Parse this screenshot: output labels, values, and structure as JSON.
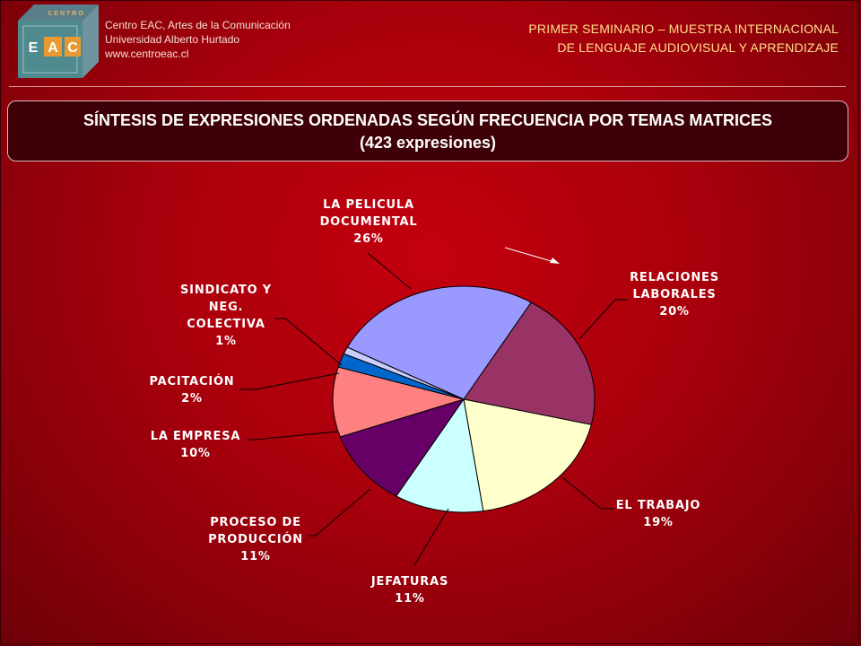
{
  "header": {
    "org_lines": [
      "Centro EAC, Artes de la Comunicación",
      "Universidad Alberto Hurtado",
      "www.centroeac.cl"
    ],
    "seminar_lines": [
      "PRIMER SEMINARIO – MUESTRA INTERNACIONAL",
      "DE LENGUAJE AUDIOVISUAL Y APRENDIZAJE"
    ],
    "logo": {
      "top_text": "CENTRO",
      "letters": [
        "E",
        "A",
        "C"
      ]
    }
  },
  "title": {
    "line1": "SÍNTESIS DE EXPRESIONES ORDENADAS SEGÚN FRECUENCIA POR TEMAS MATRICES",
    "line2": "(423 expresiones)"
  },
  "chart_data": {
    "type": "pie",
    "slices": [
      {
        "label": [
          "RELACIONES",
          "LABORALES"
        ],
        "percent_label": "20%",
        "value": 20,
        "color": "#993366"
      },
      {
        "label": [
          "EL TRABAJO"
        ],
        "percent_label": "19%",
        "value": 19,
        "color": "#ffffcc"
      },
      {
        "label": [
          "JEFATURAS"
        ],
        "percent_label": "11%",
        "value": 11,
        "color": "#ccffff"
      },
      {
        "label": [
          "PROCESO DE",
          "PRODUCCIÓN"
        ],
        "percent_label": "11%",
        "value": 11,
        "color": "#660066"
      },
      {
        "label": [
          "LA EMPRESA"
        ],
        "percent_label": "10%",
        "value": 10,
        "color": "#ff8080"
      },
      {
        "label": [
          "PACITACIÓN"
        ],
        "percent_label": "2%",
        "value": 2,
        "color": "#0066cc"
      },
      {
        "label": [
          "SINDICATO Y",
          "NEG.",
          "COLECTIVA"
        ],
        "percent_label": "1%",
        "value": 1,
        "color": "#ccccff"
      },
      {
        "label": [
          "LA PELICULA",
          "DOCUMENTAL"
        ],
        "percent_label": "26%",
        "value": 26,
        "color": "#9999ff"
      }
    ],
    "legend": "none",
    "label_color": "#ffffff"
  }
}
